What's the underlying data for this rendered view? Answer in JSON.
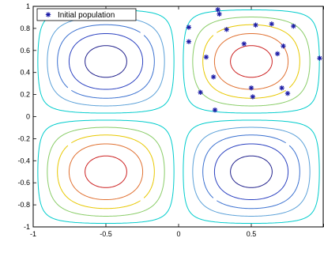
{
  "chart_data": {
    "type": "scatter",
    "title": "",
    "xlabel": "",
    "ylabel": "",
    "xlim": [
      -1,
      1
    ],
    "ylim": [
      -1,
      1
    ],
    "x_ticks": [
      -1,
      -0.5,
      0,
      0.5,
      1
    ],
    "x_tick_labels": [
      "-1",
      "-0.5",
      "0",
      "0.5",
      ""
    ],
    "y_ticks": [
      -1,
      -0.8,
      -0.6,
      -0.4,
      -0.2,
      0,
      0.2,
      0.4,
      0.6,
      0.8,
      1
    ],
    "y_tick_labels": [
      "-1",
      "-0.8",
      "-0.6",
      "-0.4",
      "-0.2",
      "0",
      "0.2",
      "0.4",
      "0.6",
      "0.8",
      "1"
    ],
    "grid": false,
    "legend": {
      "position": "top-left",
      "entries": [
        "Initial population"
      ]
    },
    "contour": {
      "function": "sin(pi*x)*sin(pi*y)",
      "levels": [
        0.1,
        0.3,
        0.5,
        0.7,
        0.9
      ],
      "level_colors": [
        "#00cccc",
        "#88cc66",
        "#e8c800",
        "#e07030",
        "#cc2020"
      ],
      "negative_level_colors": [
        "#00cccc",
        "#5aa0d8",
        "#3a70d0",
        "#2a40c0",
        "#20208c"
      ]
    },
    "series": [
      {
        "name": "Initial population",
        "marker": "asterisk",
        "color": "#1a1aa6",
        "points": [
          [
            0.27,
            0.97
          ],
          [
            0.28,
            0.93
          ],
          [
            0.07,
            0.81
          ],
          [
            0.33,
            0.79
          ],
          [
            0.53,
            0.83
          ],
          [
            0.64,
            0.84
          ],
          [
            0.79,
            0.82
          ],
          [
            0.07,
            0.68
          ],
          [
            0.45,
            0.66
          ],
          [
            0.72,
            0.64
          ],
          [
            0.19,
            0.54
          ],
          [
            0.68,
            0.57
          ],
          [
            0.97,
            0.53
          ],
          [
            0.24,
            0.36
          ],
          [
            0.5,
            0.26
          ],
          [
            0.71,
            0.26
          ],
          [
            0.75,
            0.21
          ],
          [
            0.15,
            0.22
          ],
          [
            0.51,
            0.18
          ],
          [
            0.25,
            0.06
          ]
        ]
      }
    ]
  }
}
